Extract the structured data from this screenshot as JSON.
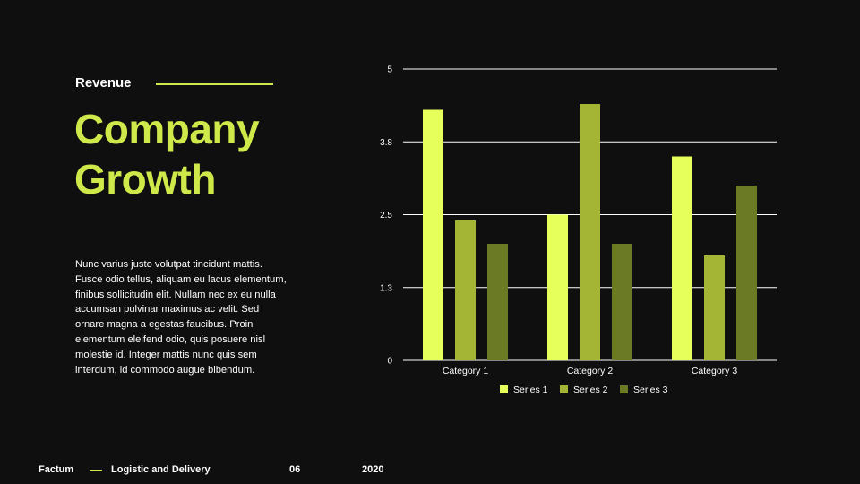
{
  "slide": {
    "kicker": "Revenue",
    "title_line1": "Company",
    "title_line2": "Growth",
    "body": "Nunc varius justo volutpat tincidunt mattis. Fusce odio tellus, aliquam eu lacus elementum, finibus sollicitudin elit. Nullam nec ex eu nulla accumsan pulvinar maximus ac velit. Sed ornare magna a egestas faucibus. Proin elementum eleifend odio, quis posuere nisl molestie id. Integer mattis nunc quis sem interdum, id commodo augue bibendum."
  },
  "footer": {
    "brand": "Factum",
    "section": "Logistic and Delivery",
    "page": "06",
    "year": "2020"
  },
  "colors": {
    "accent": "#cfe94a",
    "series1": "#e6ff5a",
    "series2": "#a4b536",
    "series3": "#6b7a24"
  },
  "chart_data": {
    "type": "bar",
    "categories": [
      "Category 1",
      "Category 2",
      "Category 3"
    ],
    "series": [
      {
        "name": "Series 1",
        "values": [
          4.3,
          2.5,
          3.5
        ]
      },
      {
        "name": "Series 2",
        "values": [
          2.4,
          4.4,
          1.8
        ]
      },
      {
        "name": "Series 3",
        "values": [
          2.0,
          2.0,
          3.0
        ]
      }
    ],
    "ylim": [
      0,
      5
    ],
    "yticks": [
      "0",
      "1.3",
      "2.5",
      "3.8",
      "5"
    ],
    "ytick_values": [
      0,
      1.25,
      2.5,
      3.75,
      5
    ],
    "grid": true,
    "legend": "bottom",
    "title": "",
    "xlabel": "",
    "ylabel": ""
  }
}
